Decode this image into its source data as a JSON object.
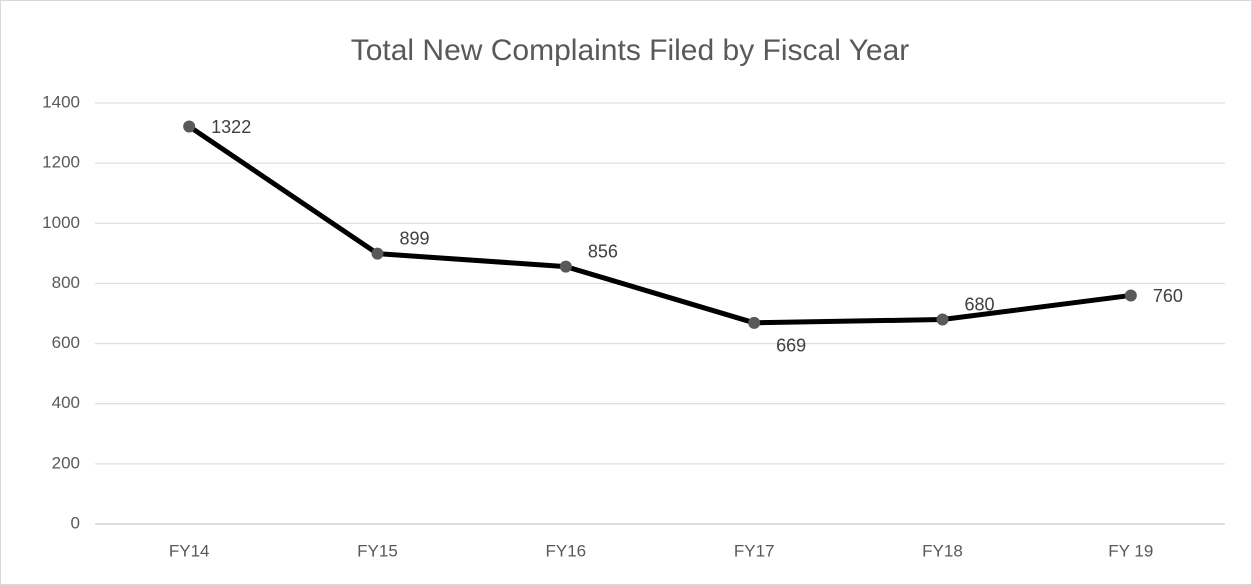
{
  "chart_data": {
    "type": "line",
    "title": "Total New Complaints Filed by Fiscal Year",
    "categories": [
      "FY14",
      "FY15",
      "FY16",
      "FY17",
      "FY18",
      "FY 19"
    ],
    "series": [
      {
        "name": "Total New Complaints",
        "color": "#000000",
        "marker_color": "#595959",
        "values": [
          1322,
          899,
          856,
          669,
          680,
          760
        ]
      }
    ],
    "ylim": [
      0,
      1400
    ],
    "yticks": [
      0,
      200,
      400,
      600,
      800,
      1000,
      1200,
      1400
    ],
    "grid": true
  }
}
